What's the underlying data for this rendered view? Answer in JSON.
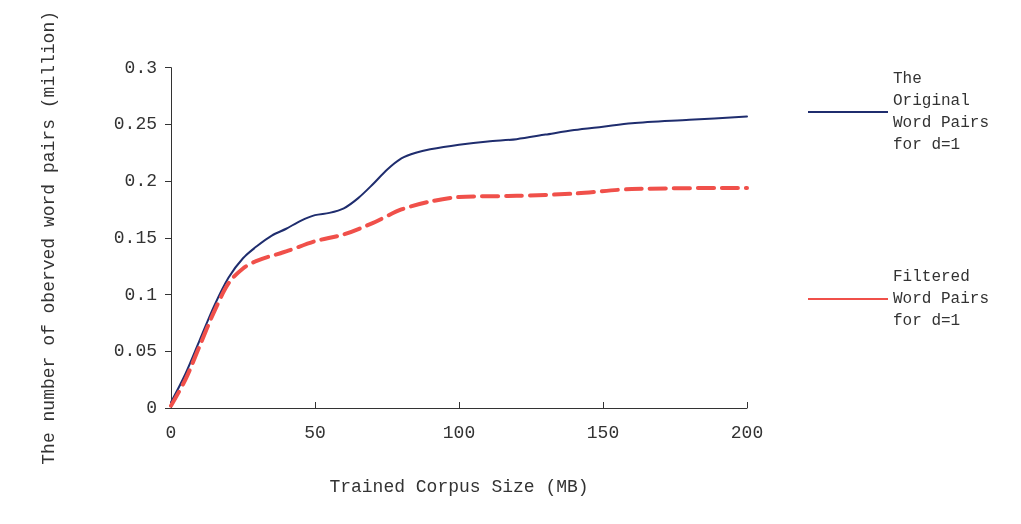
{
  "chart_data": {
    "type": "line",
    "xlabel": "Trained Corpus Size (MB)",
    "ylabel": "The number of oberved word pairs (million)",
    "xlim": [
      0,
      200
    ],
    "xticks": [
      0,
      50,
      100,
      150,
      200
    ],
    "ylim": [
      0,
      0.3
    ],
    "yticks": [
      0,
      0.05,
      0.1,
      0.15,
      0.2,
      0.25,
      0.3
    ],
    "grid": false,
    "legend": "right",
    "marker": "none",
    "series": [
      {
        "name": "The Original Word Pairs for d=1",
        "color": "#1f2d6e",
        "line_style": "solid",
        "x": [
          0,
          5,
          10,
          15,
          20,
          25,
          30,
          35,
          40,
          45,
          50,
          55,
          60,
          65,
          70,
          75,
          80,
          85,
          90,
          100,
          110,
          120,
          130,
          140,
          150,
          160,
          180,
          200
        ],
        "values": [
          0.005,
          0.03,
          0.06,
          0.09,
          0.115,
          0.132,
          0.143,
          0.152,
          0.158,
          0.165,
          0.17,
          0.172,
          0.176,
          0.185,
          0.197,
          0.21,
          0.22,
          0.225,
          0.228,
          0.232,
          0.235,
          0.237,
          0.241,
          0.245,
          0.248,
          0.251,
          0.254,
          0.257
        ]
      },
      {
        "name": "Filtered Word Pairs for d=1",
        "color": "#f0504a",
        "line_style": "dashed",
        "x": [
          0,
          5,
          10,
          15,
          20,
          25,
          30,
          40,
          50,
          60,
          70,
          80,
          90,
          100,
          120,
          140,
          160,
          200
        ],
        "values": [
          0.002,
          0.025,
          0.055,
          0.085,
          0.11,
          0.123,
          0.13,
          0.138,
          0.147,
          0.153,
          0.163,
          0.175,
          0.182,
          0.186,
          0.187,
          0.189,
          0.193,
          0.194
        ]
      }
    ]
  }
}
